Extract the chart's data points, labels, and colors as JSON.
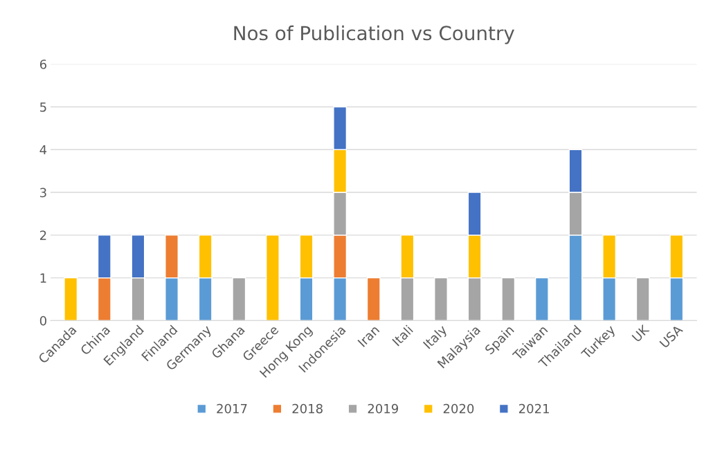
{
  "chart_data": {
    "type": "bar",
    "stacked": true,
    "title": "Nos of Publication vs Country",
    "categories": [
      "Canada",
      "China",
      "England",
      "Finland",
      "Germany",
      "Ghana",
      "Greece",
      "Hong Kong",
      "Indonesia",
      "Iran",
      "Itali",
      "Italy",
      "Malaysia",
      "Spain",
      "Taiwan",
      "Thailand",
      "Turkey",
      "UK",
      "USA"
    ],
    "series": [
      {
        "name": "2017",
        "color": "#5b9bd5",
        "values": [
          null,
          null,
          null,
          1,
          1,
          null,
          null,
          1,
          1,
          null,
          null,
          null,
          null,
          null,
          1,
          2,
          1,
          null,
          1
        ]
      },
      {
        "name": "2018",
        "color": "#ed7d31",
        "values": [
          null,
          1,
          null,
          1,
          null,
          null,
          null,
          null,
          1,
          1,
          null,
          null,
          null,
          null,
          null,
          null,
          null,
          null,
          null
        ]
      },
      {
        "name": "2019",
        "color": "#a5a5a5",
        "values": [
          null,
          null,
          1,
          null,
          null,
          1,
          null,
          null,
          1,
          null,
          1,
          1,
          1,
          1,
          null,
          1,
          null,
          1,
          null
        ]
      },
      {
        "name": "2020",
        "color": "#ffc000",
        "values": [
          1,
          null,
          null,
          null,
          1,
          null,
          2,
          1,
          1,
          null,
          1,
          null,
          1,
          null,
          null,
          null,
          1,
          null,
          1
        ]
      },
      {
        "name": "2021",
        "color": "#4472c4",
        "values": [
          null,
          1,
          1,
          null,
          null,
          null,
          null,
          null,
          1,
          null,
          null,
          null,
          1,
          null,
          null,
          1,
          null,
          null,
          null
        ]
      }
    ],
    "ylim": [
      0,
      6
    ],
    "yticks": [
      0,
      1,
      2,
      3,
      4,
      5,
      6
    ],
    "grid": "y",
    "legend": "bottom"
  }
}
